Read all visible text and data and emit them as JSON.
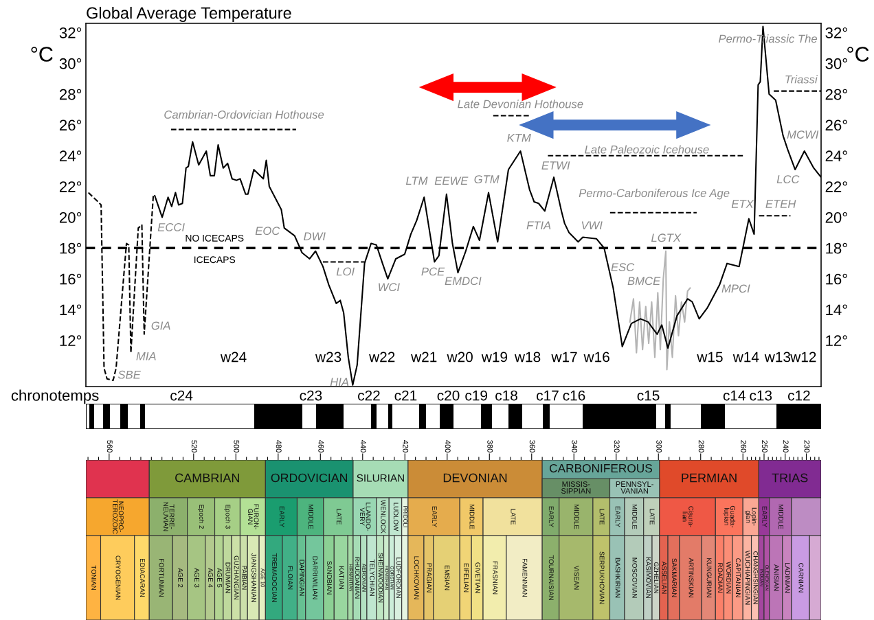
{
  "chart_data": [
    {
      "type": "line",
      "title": "Global Average Temperature",
      "ylabel": "°C",
      "y2label": "°C",
      "xlabel": "chronotemps",
      "xlim": [
        571,
        223
      ],
      "ylim": [
        9,
        32.6
      ],
      "y2lim": [
        9,
        32.6
      ],
      "xticks": [
        560,
        520,
        500,
        480,
        460,
        440,
        420,
        400,
        380,
        360,
        340,
        320,
        300,
        280,
        260,
        250,
        240,
        230
      ],
      "yticks": [
        {
          "value": 12,
          "label": "12°"
        },
        {
          "value": 14,
          "label": "14°"
        },
        {
          "value": 16,
          "label": "16°"
        },
        {
          "value": 18,
          "label": "18°"
        },
        {
          "value": 20,
          "label": "20°"
        },
        {
          "value": 22,
          "label": "22°"
        },
        {
          "value": 24,
          "label": "24°"
        },
        {
          "value": 26,
          "label": "26°"
        },
        {
          "value": 28,
          "label": "28°"
        },
        {
          "value": 30,
          "label": "30°"
        },
        {
          "value": 32,
          "label": "32°"
        }
      ],
      "y2ticks": [
        {
          "value": 12,
          "label": "12°"
        },
        {
          "value": 14,
          "label": "14°"
        },
        {
          "value": 16,
          "label": "16°"
        },
        {
          "value": 18,
          "label": "18°"
        },
        {
          "value": 20,
          "label": "20°"
        },
        {
          "value": 22,
          "label": "22°"
        },
        {
          "value": 24,
          "label": "24°"
        },
        {
          "value": 26,
          "label": "26°"
        },
        {
          "value": 28,
          "label": "28°"
        },
        {
          "value": 30,
          "label": "30°"
        },
        {
          "value": 32,
          "label": "32°"
        }
      ],
      "series": [
        {
          "color": "#b4b4b4",
          "line_style": "solid",
          "x": [
            313.5,
            311.8,
            310.4,
            308.9,
            307.5,
            306.0,
            304.6,
            303.2,
            301.7,
            300.3,
            299.1,
            297.7,
            296.5,
            296.0,
            294.8,
            293.4,
            291.9,
            290.5,
            289.1,
            287.6,
            286.2,
            285.0
          ],
          "values": [
            13.2,
            14.7,
            11.2,
            14.5,
            11.4,
            14.2,
            11.8,
            14.5,
            10.9,
            15.1,
            11.4,
            16.0,
            17.8,
            10.1,
            13.2,
            10.9,
            14.9,
            12.3,
            14.5,
            13.2,
            15.2,
            15.4
          ]
        },
        {
          "color": "#000000",
          "line_style": "dashed",
          "x": [
            569.8,
            565.2,
            563.8,
            562.4,
            561.0,
            558.1,
            556.7,
            551.8,
            550.7,
            549.7,
            546.2,
            544.5,
            543.4,
            539.1
          ],
          "values": [
            21.6,
            21.0,
            20.8,
            10.2,
            9.5,
            9.4,
            10.2,
            18.3,
            18.2,
            11.2,
            19.3,
            19.5,
            12.4,
            21.4
          ]
        },
        {
          "color": "#000000",
          "line_style": "solid",
          "x": [
            538.4,
            534.9,
            532.1,
            530.4,
            528.6,
            527.1,
            525.3,
            523.6,
            522.5,
            520.5,
            517.6,
            514.0,
            512.1,
            510.2,
            508.4,
            506.0,
            503.9,
            501.8,
            499.7,
            498.0,
            495.4,
            494.3,
            491.5,
            487.0,
            485.6,
            484.2,
            478.5,
            477.1,
            472.2,
            468.7,
            465.1,
            462.3,
            458.8,
            456.0,
            452.5,
            450.6,
            449.0,
            446.8,
            444.7,
            442.6,
            439.1,
            436.0,
            433.5,
            430.6,
            428.1,
            424.3,
            420.1,
            417.2,
            414.4,
            410.9,
            406.0,
            403.9,
            400.3,
            397.5,
            394.9,
            391.2,
            387.6,
            384.7,
            380.4,
            376.1,
            371.0,
            365.3,
            361.0,
            358.8,
            356.7,
            353.8,
            349.5,
            345.9,
            344.4,
            342.3,
            338.0,
            335.8,
            329.3,
            325.7,
            321.4,
            317.1,
            312.8,
            308.5,
            304.9,
            300.6,
            298.4,
            295.5,
            291.2,
            286.2,
            284.0,
            280.7,
            276.9,
            271.1,
            267.5,
            264.6,
            261.8,
            257.2,
            254.7,
            252.8,
            251.8,
            250.5,
            247.6,
            244.5,
            241.0,
            238.8,
            235.3,
            230.9,
            226.5,
            223
          ],
          "values": [
            21.4,
            20.0,
            21.3,
            20.7,
            21.6,
            20.8,
            20.9,
            23.2,
            23.3,
            24.9,
            23.4,
            24.3,
            22.7,
            22.7,
            24.7,
            23.2,
            23.5,
            22.5,
            22.4,
            22.5,
            21.5,
            21.5,
            23.1,
            22.5,
            23.7,
            22.0,
            20.5,
            19.3,
            18.8,
            17.7,
            17.3,
            17.8,
            16.8,
            15.6,
            14.4,
            14.6,
            13.8,
            10.9,
            9.1,
            10.4,
            17.0,
            18.3,
            18.2,
            17.0,
            16.0,
            17.3,
            17.6,
            18.9,
            19.8,
            21.3,
            17.1,
            17.5,
            21.5,
            18.3,
            16.4,
            17.8,
            19.4,
            18.5,
            21.6,
            18.4,
            23.1,
            24.3,
            21.8,
            21.0,
            20.9,
            20.4,
            22.6,
            20.4,
            19.6,
            19.0,
            18.4,
            18.7,
            18.6,
            18.0,
            15.4,
            11.6,
            13.1,
            13.4,
            13.2,
            12.4,
            13.0,
            11.5,
            13.6,
            14.7,
            14.5,
            13.4,
            14.1,
            15.6,
            17.0,
            16.9,
            16.8,
            19.9,
            18.9,
            28.6,
            28.8,
            32.4,
            28.0,
            27.6,
            25.3,
            24.4,
            23.1,
            24.3,
            23.2,
            22.6
          ]
        },
        {
          "color": "#000000",
          "line_style": "dashed",
          "x": [
            530.7,
            471.5
          ],
          "values": [
            25.7,
            25.7
          ]
        },
        {
          "color": "#000000",
          "line_style": "dashed",
          "x": [
            458.8,
            439.1
          ],
          "values": [
            17.1,
            17.1
          ]
        },
        {
          "color": "#000000",
          "line_style": "dashed",
          "x": [
            378.2,
            361.0
          ],
          "values": [
            26.6,
            26.6
          ]
        },
        {
          "color": "#000000",
          "line_style": "dashed",
          "x": [
            352.3,
            259.8
          ],
          "values": [
            24.0,
            24.0
          ]
        },
        {
          "color": "#000000",
          "line_style": "dashed",
          "x": [
            322.9,
            281.9
          ],
          "values": [
            20.3,
            20.3
          ]
        },
        {
          "color": "#000000",
          "line_style": "dashed",
          "x": [
            252.4,
            237.5
          ],
          "values": [
            20.1,
            20.1
          ]
        },
        {
          "color": "#000000",
          "line_style": "dashed",
          "x": [
            245.4,
            223
          ],
          "values": [
            28.2,
            28.2
          ]
        }
      ],
      "ref_lines": [
        {
          "axis": "y",
          "value": 18,
          "label": "NO ICECAPS",
          "color": "#000000",
          "line_style": "dashed"
        }
      ],
      "annotations": [
        "ICECAPS",
        "Cambrian-Ordovician Hothouse",
        "ECCI",
        "EOC",
        "DWI",
        "LOI",
        "WCI",
        "GIA",
        "MIA",
        "SBE",
        "HIA",
        "LTM",
        "EEWE",
        "PCE",
        "EMDCI",
        "GTM",
        "KTM",
        "Late Devonian Hothouse",
        "ETWI",
        "FTIA",
        "VWI",
        "Late Paleozoic Icehouse",
        "Permo-Carboniferous Ice Age",
        "LGTX",
        "ESC",
        "BMCE",
        "MPCI",
        "ETX",
        "ETEH",
        "LCC",
        "MCWI",
        "Permo-Triassic The",
        "Triassi",
        "w24",
        "w23",
        "w22",
        "w21",
        "w20",
        "w19",
        "w18",
        "w17",
        "w16",
        "w15",
        "w14",
        "w13",
        "w12",
        "c24",
        "c23",
        "c22",
        "c21",
        "c20",
        "c19",
        "c18",
        "c17",
        "c16",
        "c15",
        "c14",
        "c13",
        "c12"
      ]
    },
    {
      "type": "other",
      "annotations": [
        "CAMBRIAN",
        "ORDOVICIAN",
        "SILURIAN",
        "DEVONIAN",
        "CARBONIFEROUS",
        "PERMIAN",
        "TRIAS",
        "MISSIS-\nSIPPIAN",
        "PENNSYL-\nVANIAN",
        "NEOPRO-\nTEROZOIC",
        "TERRE-\nNEUVIAN",
        "Epoch 2",
        "Epoch 3",
        "FURON-\nGIAN",
        "EARLY",
        "MIDDLE",
        "LATE",
        "LLANDO-\nVERY",
        "WENLOCK",
        "LUDLOW",
        "PRIDOLI",
        "EARLY",
        "MIDDLE",
        "LATE",
        "EARLY",
        "MIDDLE",
        "LATE",
        "EARLY",
        "MIDDLE",
        "LATE",
        "Cisura-\nlian",
        "Guada-\nlupian",
        "Lopin-\ngian",
        "EARLY",
        "MIDDLE",
        "TONIAN",
        "CRYOGENIAN",
        "EDIACARAN",
        "FORTUNIAN",
        "AGE 2",
        "AGE 3",
        "AGE 4",
        "AGE 5",
        "DRUMIAN",
        "GUZHANGIAN",
        "PAIBIAN",
        "JIANGSHANIAN",
        "AGE 10",
        "TREMADOCIAN",
        "FLOIAN",
        "DAPINGIAN",
        "DARRIWILIAN",
        "SANDBIAN",
        "KATIAN",
        "HIRNANTIAN",
        "RHUDDANIAN",
        "AERONIAN",
        "TELYCHIAN",
        "SHEINWOODIAN",
        "HOMERIAN",
        "GORSTIAN",
        "LUDFORDIAN",
        "LOCHKOVIAN",
        "PRAGIAN",
        "EMSIAN",
        "EIFELIAN",
        "GIVETIAN",
        "FRASNIAN",
        "FAMENNIAN",
        "TOURNAISIAN",
        "VISEAN",
        "SERPUKHOVIAN",
        "BASHKIRIAN",
        "MOSCOVIAN",
        "KASIMOVIAN",
        "GZHELIAN",
        "ASSELIAN",
        "SAKMARIAN",
        "ARTINSKIAN",
        "KUNGURIAN",
        "ROADIAN",
        "WORDIAN",
        "CAPITANIAN",
        "WUCHIAPINGIAN",
        "CHANGHSINGIAN",
        "INDUAN",
        "OLENEKIAN",
        "ANISIAN",
        "LADINIAN",
        "CARNIAN"
      ]
    }
  ]
}
